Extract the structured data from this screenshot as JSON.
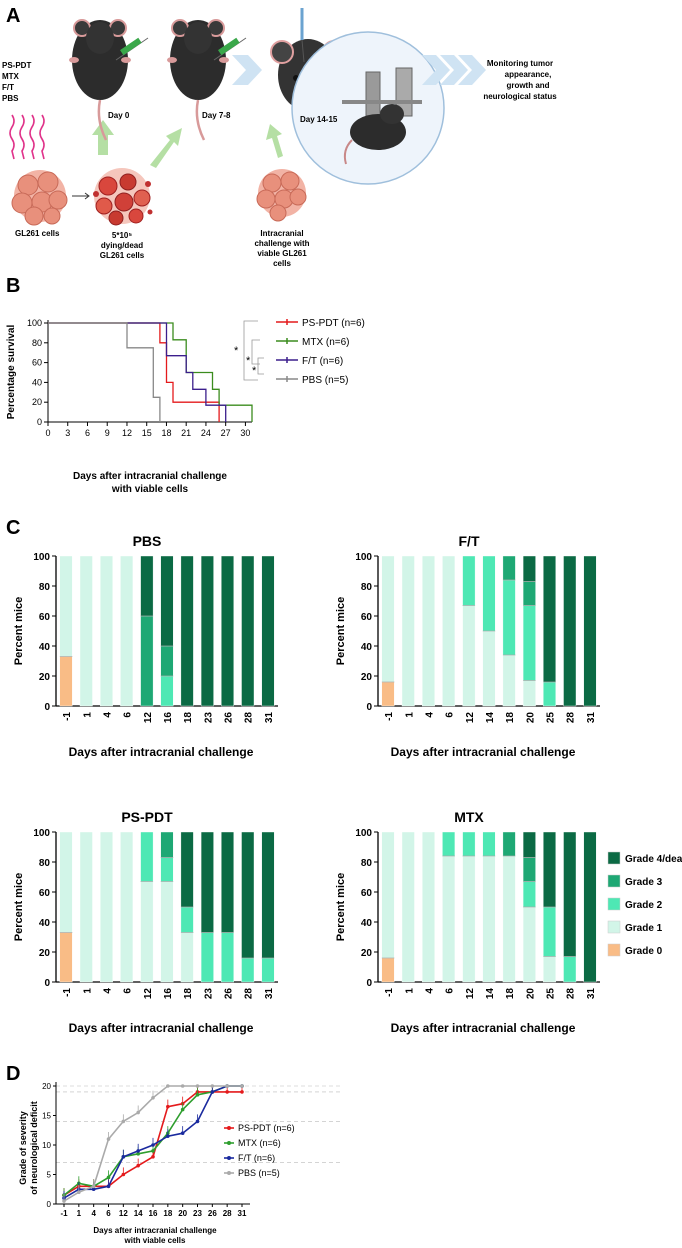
{
  "panels": {
    "A": "A",
    "B": "B",
    "C": "C",
    "D": "D"
  },
  "colors": {
    "pspdt": "#e41a1c",
    "mtx": "#3b8c1e",
    "ft": "#3b1e8c",
    "pbs": "#888888",
    "grade0": "#f9bc86",
    "grade1": "#d2f5e8",
    "grade2": "#4ee8b4",
    "grade3": "#1ea874",
    "grade4": "#0b6a44",
    "d_pspdt": "#e41a1c",
    "d_mtx": "#2e9e2e",
    "d_ft": "#1a2a9e",
    "d_pbs": "#aaaaaa"
  },
  "panel_a": {
    "treatments": [
      "PS-PDT",
      "MTX",
      "F/T",
      "PBS"
    ],
    "gl261_cells": "GL261 cells",
    "dying_cells": [
      "5*10⁵",
      "dying/dead",
      "GL261 cells"
    ],
    "day0": "Day 0",
    "day78": "Day 7-8",
    "day1415": "Day 14-15",
    "challenge": [
      "Intracranial",
      "challenge with",
      "viable GL261",
      "cells"
    ],
    "monitoring": [
      "Monitoring tumor",
      "appearance,",
      "growth and",
      "neurological status"
    ]
  },
  "panel_b": {
    "chart_data": {
      "type": "line",
      "title": "",
      "xlabel": "Days after intracranial challenge with viable cells",
      "xlabel_lines": [
        "Days after intracranial challenge",
        "with viable cells"
      ],
      "ylabel": "Percentage survival",
      "xlim": [
        0,
        31
      ],
      "ylim": [
        0,
        100
      ],
      "xticks": [
        "0",
        "3",
        "6",
        "9",
        "12",
        "15",
        "18",
        "21",
        "24",
        "27",
        "30"
      ],
      "yticks": [
        "0",
        "20",
        "40",
        "60",
        "80",
        "100"
      ],
      "significance": [
        "*",
        "*",
        "*"
      ],
      "series": [
        {
          "name": "PS-PDT (n=6)",
          "color": "#e41a1c",
          "steps": [
            [
              0,
              100
            ],
            [
              17,
              100
            ],
            [
              17,
              80
            ],
            [
              18,
              80
            ],
            [
              18,
              40
            ],
            [
              19,
              40
            ],
            [
              19,
              20
            ],
            [
              26,
              20
            ],
            [
              26,
              0
            ]
          ]
        },
        {
          "name": "MTX (n=6)",
          "color": "#3b8c1e",
          "steps": [
            [
              0,
              100
            ],
            [
              19,
              100
            ],
            [
              19,
              83
            ],
            [
              21,
              83
            ],
            [
              21,
              50
            ],
            [
              25,
              50
            ],
            [
              25,
              33
            ],
            [
              26,
              33
            ],
            [
              26,
              17
            ],
            [
              31,
              17
            ],
            [
              31,
              0
            ]
          ]
        },
        {
          "name": "F/T (n=6)",
          "color": "#3b1e8c",
          "steps": [
            [
              0,
              100
            ],
            [
              18,
              100
            ],
            [
              18,
              67
            ],
            [
              21,
              67
            ],
            [
              21,
              50
            ],
            [
              22,
              50
            ],
            [
              22,
              33
            ],
            [
              24,
              33
            ],
            [
              24,
              17
            ],
            [
              27,
              17
            ],
            [
              27,
              0
            ]
          ]
        },
        {
          "name": "PBS (n=5)",
          "color": "#888888",
          "steps": [
            [
              0,
              100
            ],
            [
              12,
              100
            ],
            [
              12,
              75
            ],
            [
              16,
              75
            ],
            [
              16,
              25
            ],
            [
              17,
              25
            ],
            [
              17,
              0
            ]
          ]
        }
      ]
    }
  },
  "panel_c": {
    "chart_data": [
      {
        "type": "bar",
        "title": "PBS",
        "xlabel": "Days after intracranial challenge",
        "ylabel": "Percent mice",
        "ylim": [
          0,
          100
        ],
        "yticks": [
          "0",
          "20",
          "40",
          "60",
          "80",
          "100"
        ],
        "categories": [
          "-1",
          "1",
          "4",
          "6",
          "12",
          "16",
          "18",
          "23",
          "26",
          "28",
          "31"
        ],
        "series": [
          {
            "name": "Grade 0",
            "values": [
              33,
              0,
              0,
              0,
              0,
              0,
              0,
              0,
              0,
              0,
              0
            ]
          },
          {
            "name": "Grade 1",
            "values": [
              67,
              100,
              100,
              100,
              0,
              0,
              0,
              0,
              0,
              0,
              0
            ]
          },
          {
            "name": "Grade 2",
            "values": [
              0,
              0,
              0,
              0,
              0,
              20,
              0,
              0,
              0,
              0,
              0
            ]
          },
          {
            "name": "Grade 3",
            "values": [
              0,
              0,
              0,
              0,
              60,
              20,
              0,
              0,
              0,
              0,
              0
            ]
          },
          {
            "name": "Grade 4/death",
            "values": [
              0,
              0,
              0,
              0,
              40,
              60,
              100,
              100,
              100,
              100,
              100
            ]
          }
        ]
      },
      {
        "type": "bar",
        "title": "F/T",
        "xlabel": "Days after intracranial challenge",
        "ylabel": "Percent mice",
        "ylim": [
          0,
          100
        ],
        "yticks": [
          "0",
          "20",
          "40",
          "60",
          "80",
          "100"
        ],
        "categories": [
          "-1",
          "1",
          "4",
          "6",
          "12",
          "14",
          "18",
          "20",
          "25",
          "28",
          "31"
        ],
        "series": [
          {
            "name": "Grade 0",
            "values": [
              16,
              0,
              0,
              0,
              0,
              0,
              0,
              0,
              0,
              0,
              0
            ]
          },
          {
            "name": "Grade 1",
            "values": [
              84,
              100,
              100,
              100,
              67,
              50,
              34,
              17,
              0,
              0,
              0
            ]
          },
          {
            "name": "Grade 2",
            "values": [
              0,
              0,
              0,
              0,
              33,
              50,
              50,
              50,
              16,
              0,
              0
            ]
          },
          {
            "name": "Grade 3",
            "values": [
              0,
              0,
              0,
              0,
              0,
              0,
              16,
              16,
              0,
              0,
              0
            ]
          },
          {
            "name": "Grade 4/death",
            "values": [
              0,
              0,
              0,
              0,
              0,
              0,
              0,
              17,
              84,
              100,
              100
            ]
          }
        ]
      },
      {
        "type": "bar",
        "title": "PS-PDT",
        "xlabel": "Days after intracranial challenge",
        "ylabel": "Percent mice",
        "ylim": [
          0,
          100
        ],
        "yticks": [
          "0",
          "20",
          "40",
          "60",
          "80",
          "100"
        ],
        "categories": [
          "-1",
          "1",
          "4",
          "6",
          "12",
          "16",
          "18",
          "23",
          "26",
          "28",
          "31"
        ],
        "series": [
          {
            "name": "Grade 0",
            "values": [
              33,
              0,
              0,
              0,
              0,
              0,
              0,
              0,
              0,
              0,
              0
            ]
          },
          {
            "name": "Grade 1",
            "values": [
              67,
              100,
              100,
              100,
              67,
              67,
              33,
              0,
              0,
              0,
              0
            ]
          },
          {
            "name": "Grade 2",
            "values": [
              0,
              0,
              0,
              0,
              33,
              16,
              17,
              33,
              33,
              16,
              16
            ]
          },
          {
            "name": "Grade 3",
            "values": [
              0,
              0,
              0,
              0,
              0,
              17,
              0,
              0,
              0,
              0,
              0
            ]
          },
          {
            "name": "Grade 4/death",
            "values": [
              0,
              0,
              0,
              0,
              0,
              0,
              50,
              67,
              67,
              84,
              84
            ]
          }
        ]
      },
      {
        "type": "bar",
        "title": "MTX",
        "xlabel": "Days after intracranial challenge",
        "ylabel": "Percent mice",
        "ylim": [
          0,
          100
        ],
        "yticks": [
          "0",
          "20",
          "40",
          "60",
          "80",
          "100"
        ],
        "categories": [
          "-1",
          "1",
          "4",
          "6",
          "12",
          "14",
          "18",
          "20",
          "25",
          "28",
          "31"
        ],
        "series": [
          {
            "name": "Grade 0",
            "values": [
              16,
              0,
              0,
              0,
              0,
              0,
              0,
              0,
              0,
              0,
              0
            ]
          },
          {
            "name": "Grade 1",
            "values": [
              84,
              100,
              100,
              84,
              84,
              84,
              84,
              50,
              17,
              0,
              0
            ]
          },
          {
            "name": "Grade 2",
            "values": [
              0,
              0,
              0,
              16,
              16,
              16,
              0,
              17,
              33,
              17,
              0
            ]
          },
          {
            "name": "Grade 3",
            "values": [
              0,
              0,
              0,
              0,
              0,
              0,
              16,
              16,
              0,
              0,
              0
            ]
          },
          {
            "name": "Grade 4/death",
            "values": [
              0,
              0,
              0,
              0,
              0,
              0,
              0,
              17,
              50,
              83,
              100
            ]
          }
        ]
      }
    ],
    "legend": [
      "Grade 4/death",
      "Grade 3",
      "Grade 2",
      "Grade 1",
      "Grade 0"
    ]
  },
  "panel_d": {
    "chart_data": {
      "type": "line",
      "xlabel": "Days after intracranial challenge with viable cells",
      "xlabel_lines": [
        "Days after intracranial challenge",
        "with viable cells"
      ],
      "ylabel": "Grade of severity of neurological deficit",
      "ylabel_lines": [
        "Grade of severity",
        "of neurological deficit"
      ],
      "ylim": [
        0,
        20
      ],
      "x": [
        "-1",
        "1",
        "4",
        "6",
        "12",
        "14",
        "16",
        "18",
        "20",
        "23",
        "26",
        "28",
        "31"
      ],
      "yticks": [
        "0",
        "5",
        "10",
        "15",
        "20"
      ],
      "series": [
        {
          "name": "PS-PDT (n=6)",
          "color": "#e41a1c",
          "values": [
            1.5,
            3,
            3,
            3,
            5,
            6.5,
            8,
            16.5,
            17,
            19,
            19,
            19,
            19
          ]
        },
        {
          "name": "MTX (n=6)",
          "color": "#2e9e2e",
          "values": [
            1.5,
            3.5,
            3,
            4.5,
            8,
            8.5,
            9,
            12,
            16,
            18.5,
            19,
            20,
            20
          ]
        },
        {
          "name": "F/T (n=6)",
          "color": "#1a2a9e",
          "values": [
            1,
            2.5,
            2.5,
            3,
            8,
            9,
            10,
            11.5,
            12,
            14,
            19,
            20,
            20
          ]
        },
        {
          "name": "PBS (n=5)",
          "color": "#aaaaaa",
          "values": [
            0.5,
            2,
            3,
            11,
            14,
            15.5,
            18,
            20,
            20,
            20,
            20,
            20,
            20
          ]
        }
      ]
    }
  }
}
